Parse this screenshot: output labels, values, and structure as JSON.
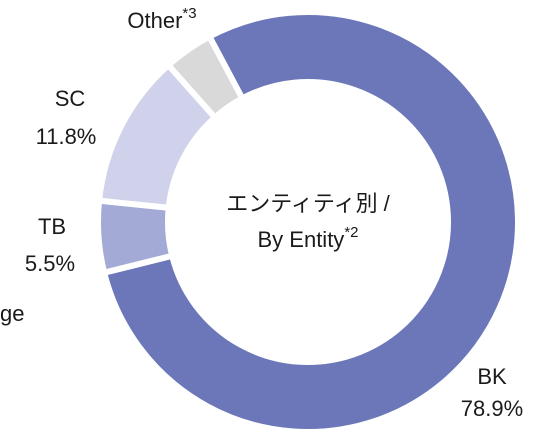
{
  "chart_data": {
    "type": "donut",
    "title": [
      "エンティティ別 /",
      "By Entity*2"
    ],
    "categories": [
      "BK",
      "TB",
      "SC",
      "Other*3"
    ],
    "values": [
      78.9,
      5.5,
      11.8,
      3.8
    ],
    "value_labels": [
      "78.9%",
      "5.5%",
      "11.8%",
      null
    ],
    "colors": [
      "#6b77b8",
      "#a4aad6",
      "#d0d2ec",
      "#d9d9d9"
    ],
    "annotations": [
      "ge"
    ]
  }
}
